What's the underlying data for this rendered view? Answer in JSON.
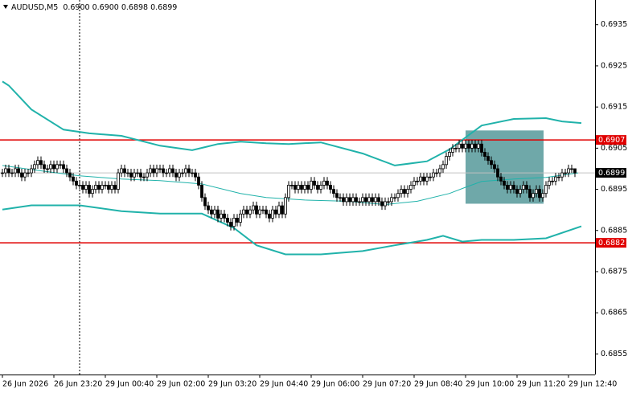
{
  "chart_data": {
    "type": "candlestick",
    "title": "AUDUSD,M5",
    "subtitle": "0.6900 0.6900 0.6898 0.6899",
    "xlim": [
      -0.75,
      184.25
    ],
    "xticks": [
      {
        "value": 0,
        "label": "26 Jun 2026"
      },
      {
        "value": 16,
        "label": "26 Jun 23:20"
      },
      {
        "value": 32,
        "label": "29 Jun 00:40"
      },
      {
        "value": 48,
        "label": "29 Jun 02:00"
      },
      {
        "value": 64,
        "label": "29 Jun 03:20"
      },
      {
        "value": 80,
        "label": "29 Jun 04:40"
      },
      {
        "value": 96,
        "label": "29 Jun 06:00"
      },
      {
        "value": 112,
        "label": "29 Jun 07:20"
      },
      {
        "value": 128,
        "label": "29 Jun 08:40"
      },
      {
        "value": 144,
        "label": "29 Jun 10:00"
      },
      {
        "value": 160,
        "label": "29 Jun 11:20"
      },
      {
        "value": 176,
        "label": "29 Jun 12:40"
      }
    ],
    "ylim": [
      0.685,
      0.6941
    ],
    "yticks": [
      0.6935,
      0.6925,
      0.6915,
      0.6905,
      0.6895,
      0.6885,
      0.6875,
      0.6865,
      0.6855
    ],
    "separator": 24,
    "up_color": "#ffffff",
    "down_color": "#000000",
    "open": [
      0.6899,
      0.6899,
      0.69,
      0.6899,
      0.6899,
      0.69,
      0.6899,
      0.6898,
      0.6899,
      0.6899,
      0.69,
      0.6901,
      0.6902,
      0.6901,
      0.69,
      0.69,
      0.6901,
      0.69,
      0.6901,
      0.6901,
      0.69,
      0.6899,
      0.6898,
      0.6897,
      0.6896,
      0.6896,
      0.6895,
      0.6896,
      0.6894,
      0.6895,
      0.6896,
      0.6895,
      0.6896,
      0.6896,
      0.6895,
      0.6896,
      0.6895,
      0.6899,
      0.69,
      0.6899,
      0.6899,
      0.6898,
      0.6899,
      0.6899,
      0.6898,
      0.6898,
      0.6899,
      0.69,
      0.6899,
      0.69,
      0.69,
      0.6899,
      0.6899,
      0.69,
      0.6899,
      0.6898,
      0.6899,
      0.6899,
      0.69,
      0.6899,
      0.6899,
      0.6898,
      0.6896,
      0.6893,
      0.6891,
      0.689,
      0.6889,
      0.689,
      0.6888,
      0.6889,
      0.6888,
      0.6887,
      0.6886,
      0.6888,
      0.6887,
      0.6889,
      0.689,
      0.6889,
      0.689,
      0.6891,
      0.6889,
      0.689,
      0.689,
      0.6889,
      0.6888,
      0.689,
      0.6889,
      0.6891,
      0.6889,
      0.6893,
      0.6896,
      0.6896,
      0.6895,
      0.6896,
      0.6895,
      0.6896,
      0.6895,
      0.6897,
      0.6896,
      0.6895,
      0.6896,
      0.6897,
      0.6896,
      0.6895,
      0.6894,
      0.6893,
      0.6893,
      0.6892,
      0.6893,
      0.6892,
      0.6893,
      0.6892,
      0.6892,
      0.6893,
      0.6892,
      0.6893,
      0.6892,
      0.6893,
      0.6892,
      0.6891,
      0.6892,
      0.6892,
      0.6893,
      0.6893,
      0.6894,
      0.6895,
      0.6894,
      0.6895,
      0.6896,
      0.6897,
      0.6897,
      0.6898,
      0.6897,
      0.6898,
      0.6898,
      0.6899,
      0.6899,
      0.69,
      0.6901,
      0.6903,
      0.6904,
      0.6905,
      0.6905,
      0.6906,
      0.6905,
      0.6906,
      0.6905,
      0.6906,
      0.6905,
      0.6906,
      0.6904,
      0.6903,
      0.6902,
      0.6901,
      0.69,
      0.6898,
      0.6897,
      0.6896,
      0.6895,
      0.6896,
      0.6895,
      0.6894,
      0.6895,
      0.6896,
      0.6895,
      0.6893,
      0.6894,
      0.6895,
      0.6893,
      0.6894,
      0.6896,
      0.6897,
      0.6897,
      0.6898,
      0.6898,
      0.6899,
      0.6899,
      0.69,
      0.69
    ],
    "high": [
      0.69,
      0.6901,
      0.6901,
      0.69,
      0.6901,
      0.6901,
      0.69,
      0.69,
      0.69,
      0.6901,
      0.6902,
      0.6903,
      0.6903,
      0.6902,
      0.6901,
      0.6902,
      0.6902,
      0.6902,
      0.6902,
      0.6902,
      0.6901,
      0.69,
      0.6899,
      0.6898,
      0.6897,
      0.6897,
      0.6897,
      0.6897,
      0.6896,
      0.6897,
      0.6897,
      0.6897,
      0.6897,
      0.6897,
      0.6897,
      0.6897,
      0.69,
      0.6901,
      0.6901,
      0.69,
      0.69,
      0.69,
      0.69,
      0.69,
      0.6899,
      0.69,
      0.6901,
      0.6901,
      0.6901,
      0.6901,
      0.6901,
      0.69,
      0.6901,
      0.6901,
      0.69,
      0.69,
      0.69,
      0.6901,
      0.6901,
      0.69,
      0.69,
      0.6899,
      0.6897,
      0.6894,
      0.6892,
      0.6891,
      0.6891,
      0.6891,
      0.689,
      0.689,
      0.6889,
      0.6888,
      0.6889,
      0.6889,
      0.689,
      0.6891,
      0.6891,
      0.6891,
      0.6892,
      0.6892,
      0.6891,
      0.6891,
      0.6891,
      0.689,
      0.6891,
      0.6891,
      0.6892,
      0.6892,
      0.6894,
      0.6897,
      0.6897,
      0.6897,
      0.6897,
      0.6897,
      0.6897,
      0.6897,
      0.6898,
      0.6898,
      0.6897,
      0.6897,
      0.6898,
      0.6898,
      0.6897,
      0.6896,
      0.6895,
      0.6894,
      0.6894,
      0.6894,
      0.6894,
      0.6894,
      0.6894,
      0.6893,
      0.6894,
      0.6894,
      0.6894,
      0.6894,
      0.6894,
      0.6894,
      0.6893,
      0.6893,
      0.6893,
      0.6894,
      0.6894,
      0.6895,
      0.6896,
      0.6896,
      0.6896,
      0.6897,
      0.6898,
      0.6898,
      0.6899,
      0.6899,
      0.6899,
      0.6899,
      0.69,
      0.69,
      0.6901,
      0.6902,
      0.6904,
      0.6905,
      0.6906,
      0.6906,
      0.6907,
      0.6907,
      0.6907,
      0.6907,
      0.6907,
      0.6907,
      0.6907,
      0.6907,
      0.6905,
      0.6904,
      0.6903,
      0.6902,
      0.6901,
      0.6899,
      0.6898,
      0.6897,
      0.6897,
      0.6897,
      0.6896,
      0.6896,
      0.6897,
      0.6897,
      0.6896,
      0.6895,
      0.6896,
      0.6896,
      0.6895,
      0.6897,
      0.6898,
      0.6898,
      0.6899,
      0.6899,
      0.69,
      0.69,
      0.6901,
      0.6901,
      0.69
    ],
    "low": [
      0.6898,
      0.6898,
      0.6898,
      0.6898,
      0.6898,
      0.6898,
      0.6897,
      0.6897,
      0.6898,
      0.6898,
      0.6899,
      0.69,
      0.69,
      0.6899,
      0.6899,
      0.6899,
      0.6899,
      0.6899,
      0.69,
      0.6899,
      0.6898,
      0.6897,
      0.6896,
      0.6895,
      0.6895,
      0.6894,
      0.6894,
      0.6893,
      0.6893,
      0.6894,
      0.6894,
      0.6894,
      0.6895,
      0.6894,
      0.6894,
      0.6894,
      0.6894,
      0.6898,
      0.6898,
      0.6898,
      0.6897,
      0.6897,
      0.6898,
      0.6897,
      0.6897,
      0.6897,
      0.6898,
      0.6898,
      0.6898,
      0.6899,
      0.6898,
      0.6898,
      0.6898,
      0.6898,
      0.6897,
      0.6897,
      0.6898,
      0.6898,
      0.6898,
      0.6898,
      0.6897,
      0.6895,
      0.6892,
      0.689,
      0.6889,
      0.6888,
      0.6888,
      0.6887,
      0.6887,
      0.6887,
      0.6886,
      0.6885,
      0.6885,
      0.6886,
      0.6886,
      0.6888,
      0.6888,
      0.6888,
      0.6889,
      0.6888,
      0.6888,
      0.6889,
      0.6888,
      0.6887,
      0.6887,
      0.6888,
      0.6888,
      0.6888,
      0.6888,
      0.6892,
      0.6895,
      0.6894,
      0.6894,
      0.6894,
      0.6894,
      0.6894,
      0.6894,
      0.6895,
      0.6894,
      0.6894,
      0.6895,
      0.6895,
      0.6894,
      0.6893,
      0.6892,
      0.6892,
      0.6891,
      0.6891,
      0.6891,
      0.6891,
      0.6891,
      0.6891,
      0.6891,
      0.6891,
      0.6891,
      0.6891,
      0.6891,
      0.6891,
      0.689,
      0.689,
      0.6891,
      0.6891,
      0.6892,
      0.6892,
      0.6893,
      0.6893,
      0.6893,
      0.6894,
      0.6895,
      0.6896,
      0.6896,
      0.6896,
      0.6896,
      0.6897,
      0.6897,
      0.6898,
      0.6898,
      0.6899,
      0.69,
      0.6902,
      0.6903,
      0.6904,
      0.6904,
      0.6904,
      0.6904,
      0.6904,
      0.6904,
      0.6904,
      0.6904,
      0.6903,
      0.6902,
      0.6901,
      0.69,
      0.6899,
      0.6897,
      0.6896,
      0.6895,
      0.6894,
      0.6894,
      0.6894,
      0.6893,
      0.6893,
      0.6894,
      0.6894,
      0.6892,
      0.6892,
      0.6893,
      0.6892,
      0.6892,
      0.6893,
      0.6895,
      0.6896,
      0.6896,
      0.6897,
      0.6897,
      0.6898,
      0.6898,
      0.6899,
      0.6898
    ],
    "close": [
      0.6899,
      0.69,
      0.6899,
      0.6899,
      0.69,
      0.6899,
      0.6898,
      0.6899,
      0.6899,
      0.69,
      0.6901,
      0.6902,
      0.6901,
      0.69,
      0.69,
      0.6901,
      0.69,
      0.6901,
      0.6901,
      0.69,
      0.6899,
      0.6898,
      0.6897,
      0.6896,
      0.6896,
      0.6895,
      0.6896,
      0.6894,
      0.6895,
      0.6896,
      0.6895,
      0.6896,
      0.6896,
      0.6895,
      0.6896,
      0.6895,
      0.6899,
      0.69,
      0.6899,
      0.6899,
      0.6898,
      0.6899,
      0.6899,
      0.6898,
      0.6898,
      0.6899,
      0.69,
      0.6899,
      0.69,
      0.69,
      0.6899,
      0.6899,
      0.69,
      0.6899,
      0.6898,
      0.6899,
      0.6899,
      0.69,
      0.6899,
      0.6899,
      0.6898,
      0.6896,
      0.6893,
      0.6891,
      0.689,
      0.6889,
      0.689,
      0.6888,
      0.6889,
      0.6888,
      0.6887,
      0.6886,
      0.6888,
      0.6887,
      0.6889,
      0.689,
      0.6889,
      0.689,
      0.6891,
      0.6889,
      0.689,
      0.689,
      0.6889,
      0.6888,
      0.689,
      0.6889,
      0.6891,
      0.6889,
      0.6893,
      0.6896,
      0.6896,
      0.6895,
      0.6896,
      0.6895,
      0.6896,
      0.6895,
      0.6897,
      0.6896,
      0.6895,
      0.6896,
      0.6897,
      0.6896,
      0.6895,
      0.6894,
      0.6893,
      0.6893,
      0.6892,
      0.6893,
      0.6892,
      0.6893,
      0.6892,
      0.6892,
      0.6893,
      0.6892,
      0.6893,
      0.6892,
      0.6893,
      0.6892,
      0.6891,
      0.6892,
      0.6892,
      0.6893,
      0.6893,
      0.6894,
      0.6895,
      0.6894,
      0.6895,
      0.6896,
      0.6897,
      0.6897,
      0.6898,
      0.6897,
      0.6898,
      0.6898,
      0.6899,
      0.6899,
      0.69,
      0.6901,
      0.6903,
      0.6904,
      0.6905,
      0.6905,
      0.6906,
      0.6905,
      0.6906,
      0.6905,
      0.6906,
      0.6905,
      0.6906,
      0.6904,
      0.6903,
      0.6902,
      0.6901,
      0.69,
      0.6898,
      0.6897,
      0.6896,
      0.6895,
      0.6896,
      0.6895,
      0.6894,
      0.6895,
      0.6896,
      0.6895,
      0.6893,
      0.6894,
      0.6895,
      0.6893,
      0.6894,
      0.6896,
      0.6897,
      0.6897,
      0.6898,
      0.6898,
      0.6899,
      0.6899,
      0.69,
      0.69,
      0.6899
    ],
    "bands": [
      {
        "color": "#20b2aa",
        "width": 2,
        "x": [
          0,
          2,
          9,
          19,
          27,
          37,
          49,
          59,
          67,
          74,
          82,
          89,
          99,
          112,
          122,
          132,
          139,
          144,
          149,
          159,
          169,
          174,
          180
        ],
        "values": [
          0.69212,
          0.69202,
          0.69144,
          0.69095,
          0.69086,
          0.6908,
          0.69056,
          0.69045,
          0.6906,
          0.69066,
          0.69062,
          0.6906,
          0.69064,
          0.69037,
          0.69008,
          0.69018,
          0.69047,
          0.69076,
          0.69105,
          0.69121,
          0.69123,
          0.69115,
          0.69111
        ]
      },
      {
        "color": "#20b2aa",
        "width": 1,
        "x": [
          0,
          9,
          24,
          37,
          49,
          62,
          74,
          82,
          94,
          107,
          119,
          129,
          139,
          144,
          149,
          159,
          169,
          179
        ],
        "values": [
          0.69008,
          0.68998,
          0.68983,
          0.68975,
          0.68971,
          0.68963,
          0.6894,
          0.6893,
          0.68924,
          0.68921,
          0.68913,
          0.68921,
          0.6894,
          0.68955,
          0.68969,
          0.68975,
          0.68979,
          0.6899
        ]
      },
      {
        "color": "#20b2aa",
        "width": 2,
        "x": [
          0,
          9,
          24,
          37,
          49,
          62,
          72,
          79,
          88,
          99,
          112,
          122,
          132,
          137,
          143,
          149,
          159,
          169,
          180
        ],
        "values": [
          0.68901,
          0.68911,
          0.68911,
          0.68897,
          0.68891,
          0.68891,
          0.68856,
          0.68814,
          0.68792,
          0.68792,
          0.688,
          0.68814,
          0.68827,
          0.68837,
          0.68823,
          0.68827,
          0.68827,
          0.68831,
          0.6886
        ]
      }
    ],
    "levels": [
      {
        "value": 0.6907,
        "color": "#e00000"
      },
      {
        "value": 0.6882,
        "color": "#e00000"
      }
    ],
    "current_price": {
      "value": 0.6899,
      "color": "#c0c0c0",
      "label_color": "#000000"
    },
    "zone": {
      "x": [
        144,
        168.25
      ],
      "y": [
        0.68915,
        0.69093
      ],
      "color": "#5f9ea0"
    }
  }
}
